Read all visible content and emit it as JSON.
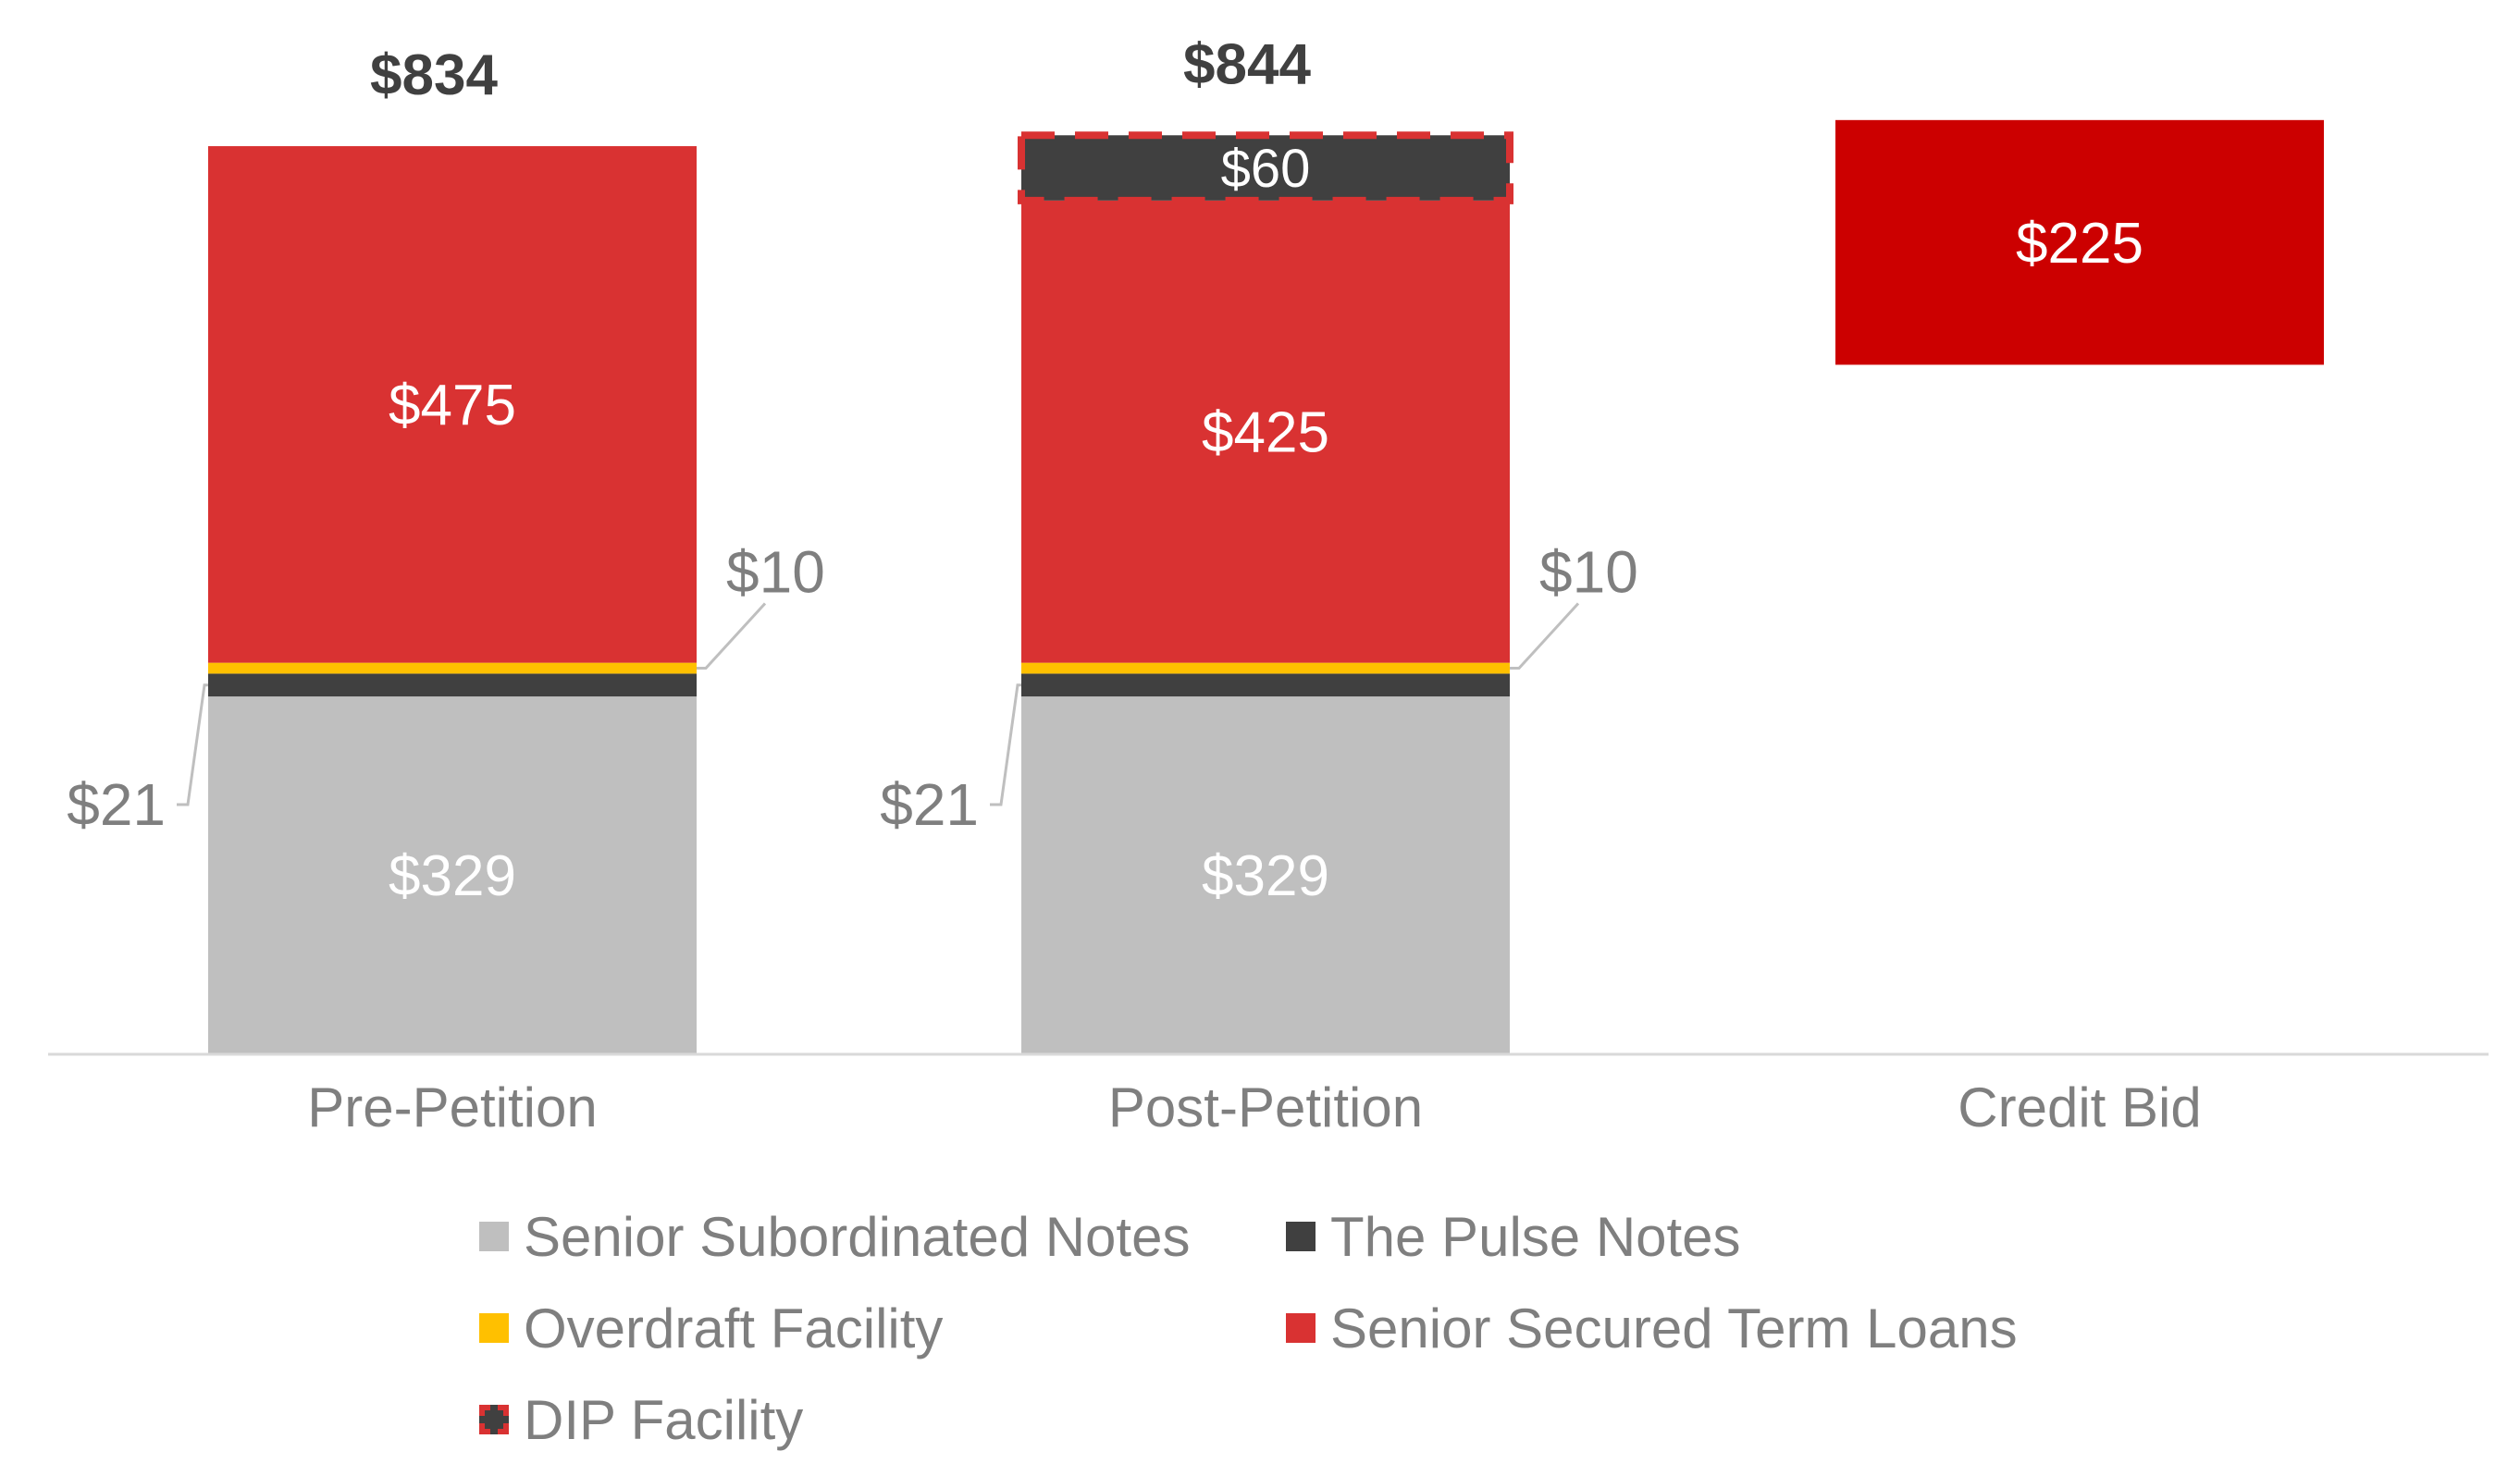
{
  "chart_data": {
    "type": "bar",
    "stacked": true,
    "categories": [
      "Pre-Petition",
      "Post-Petition",
      "Credit Bid"
    ],
    "series": [
      {
        "name": "Senior Subordinated Notes",
        "color": "#bfbfbf",
        "values": [
          329,
          329,
          null
        ],
        "labels": [
          "$329",
          "$329",
          ""
        ]
      },
      {
        "name": "The Pulse Notes",
        "color": "#404040",
        "values": [
          21,
          21,
          null
        ],
        "labels": [
          "$21",
          "$21",
          ""
        ]
      },
      {
        "name": "Overdraft Facility",
        "color": "#ffc000",
        "values": [
          10,
          10,
          null
        ],
        "labels": [
          "$10",
          "$10",
          ""
        ]
      },
      {
        "name": "Senior Secured Term Loans",
        "color": "#d93232",
        "values": [
          475,
          425,
          225
        ],
        "labels": [
          "$475",
          "$425",
          "$225"
        ]
      },
      {
        "name": "DIP Facility",
        "color": "#404040",
        "border_color": "#d93232",
        "border_style": "dashed",
        "values": [
          null,
          60,
          null
        ],
        "labels": [
          "",
          "$60",
          ""
        ]
      }
    ],
    "credit_bid_color": "#cc0000",
    "credit_bid_floating": true,
    "totals": [
      "$834",
      "$844",
      ""
    ],
    "ylim": [
      0,
      900
    ],
    "grid": false,
    "legend_position": "bottom"
  }
}
